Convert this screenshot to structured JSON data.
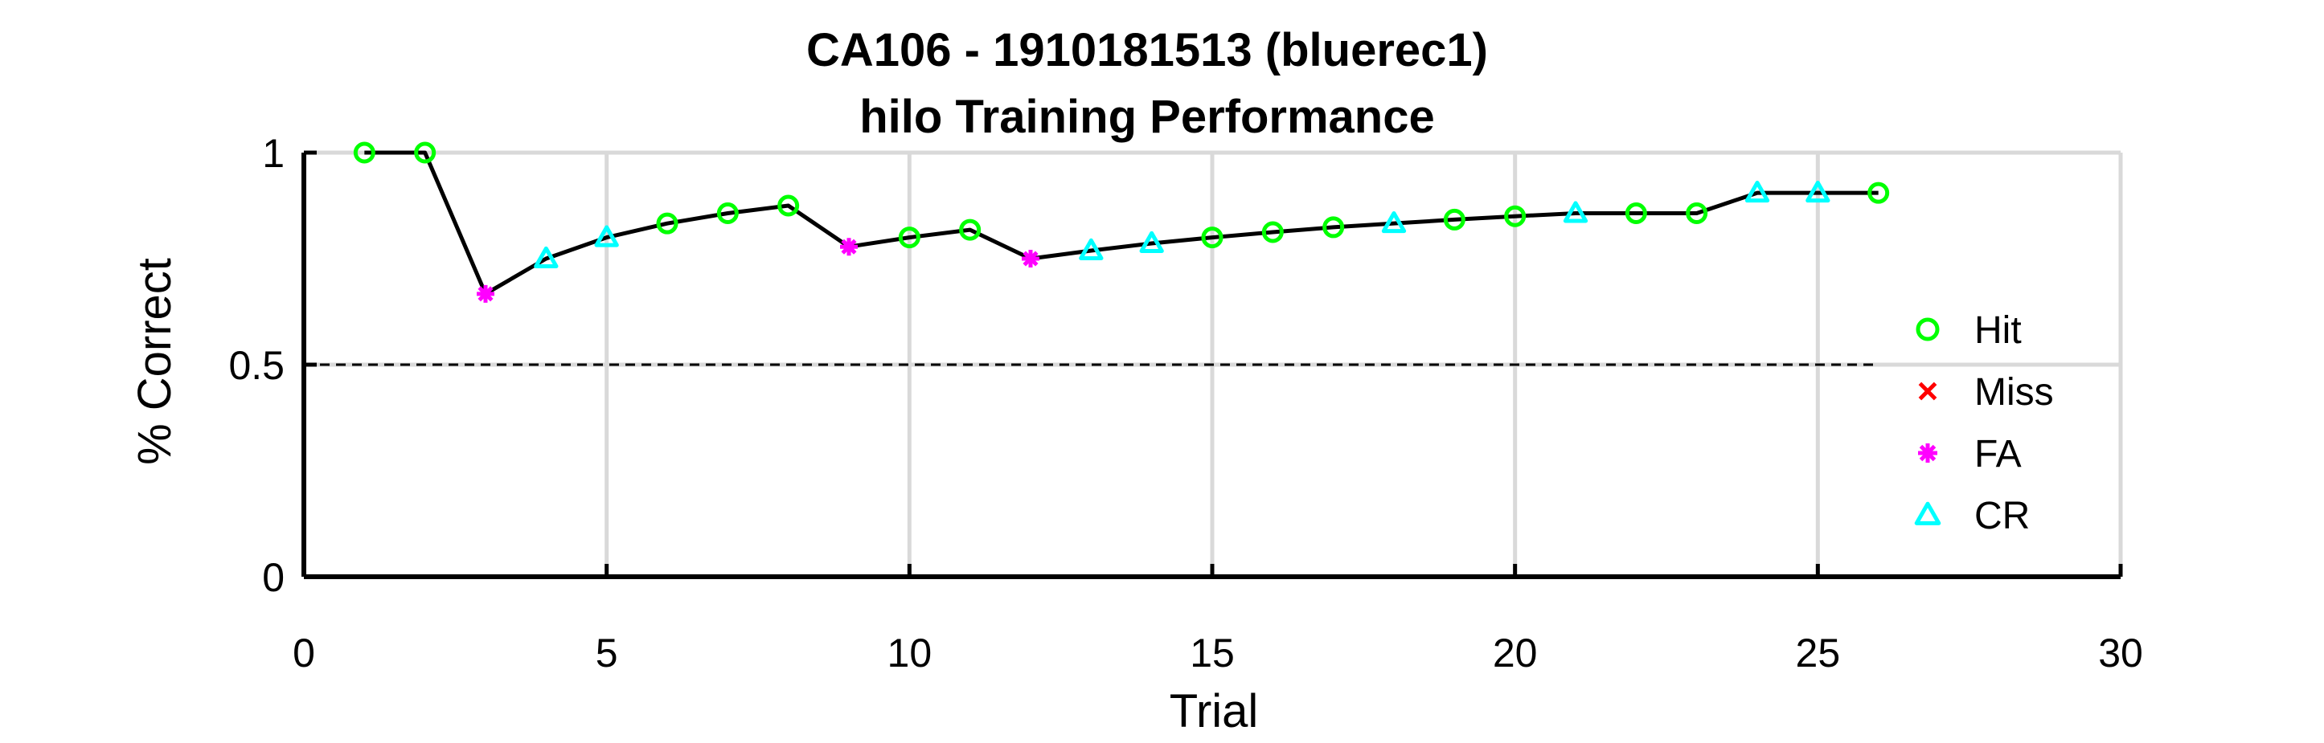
{
  "chart_data": {
    "type": "line",
    "title": [
      "CA106 - 1910181513 (bluerec1)",
      "hilo Training Performance"
    ],
    "xlabel": "Trial",
    "ylabel": "% Correct",
    "xlim": [
      0,
      30
    ],
    "ylim": [
      0,
      1
    ],
    "xticks": [
      0,
      5,
      10,
      15,
      20,
      25,
      30
    ],
    "yticks": [
      0,
      0.5,
      1
    ],
    "ytick_labels": [
      "0",
      "0.5",
      "1"
    ],
    "grid": true,
    "reference_line": {
      "y": 0.5,
      "x_range": [
        0,
        26
      ],
      "style": "dashed",
      "color": "#000000"
    },
    "legend": {
      "placement": "right",
      "entries": [
        {
          "name": "Hit",
          "marker": "circle",
          "color": "#00ff00"
        },
        {
          "name": "Miss",
          "marker": "x",
          "color": "#ff0000"
        },
        {
          "name": "FA",
          "marker": "star",
          "color": "#ff00ff"
        },
        {
          "name": "CR",
          "marker": "triangle",
          "color": "#00ffff"
        }
      ]
    },
    "line_color": "#000000",
    "points": [
      {
        "x": 1,
        "y": 1.0,
        "outcome": "Hit"
      },
      {
        "x": 2,
        "y": 1.0,
        "outcome": "Hit"
      },
      {
        "x": 3,
        "y": 0.667,
        "outcome": "FA"
      },
      {
        "x": 4,
        "y": 0.75,
        "outcome": "CR"
      },
      {
        "x": 5,
        "y": 0.8,
        "outcome": "CR"
      },
      {
        "x": 6,
        "y": 0.833,
        "outcome": "Hit"
      },
      {
        "x": 7,
        "y": 0.857,
        "outcome": "Hit"
      },
      {
        "x": 8,
        "y": 0.875,
        "outcome": "Hit"
      },
      {
        "x": 9,
        "y": 0.778,
        "outcome": "FA"
      },
      {
        "x": 10,
        "y": 0.8,
        "outcome": "Hit"
      },
      {
        "x": 11,
        "y": 0.818,
        "outcome": "Hit"
      },
      {
        "x": 12,
        "y": 0.75,
        "outcome": "FA"
      },
      {
        "x": 13,
        "y": 0.769,
        "outcome": "CR"
      },
      {
        "x": 14,
        "y": 0.786,
        "outcome": "CR"
      },
      {
        "x": 15,
        "y": 0.8,
        "outcome": "Hit"
      },
      {
        "x": 16,
        "y": 0.8125,
        "outcome": "Hit"
      },
      {
        "x": 17,
        "y": 0.824,
        "outcome": "Hit"
      },
      {
        "x": 18,
        "y": 0.833,
        "outcome": "CR"
      },
      {
        "x": 19,
        "y": 0.842,
        "outcome": "Hit"
      },
      {
        "x": 20,
        "y": 0.85,
        "outcome": "Hit"
      },
      {
        "x": 21,
        "y": 0.857,
        "outcome": "CR"
      },
      {
        "x": 22,
        "y": 0.857,
        "outcome": "Hit"
      },
      {
        "x": 23,
        "y": 0.857,
        "outcome": "Hit"
      },
      {
        "x": 24,
        "y": 0.905,
        "outcome": "CR"
      },
      {
        "x": 25,
        "y": 0.905,
        "outcome": "CR"
      },
      {
        "x": 26,
        "y": 0.905,
        "outcome": "Hit"
      }
    ]
  }
}
